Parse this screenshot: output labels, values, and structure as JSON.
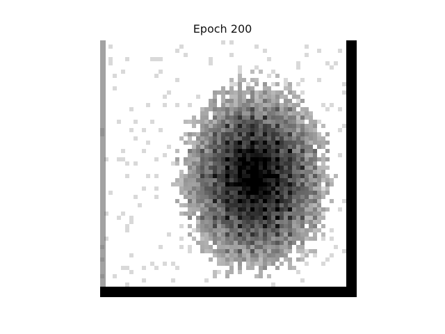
{
  "figure": {
    "title": "Epoch 200"
  }
}
